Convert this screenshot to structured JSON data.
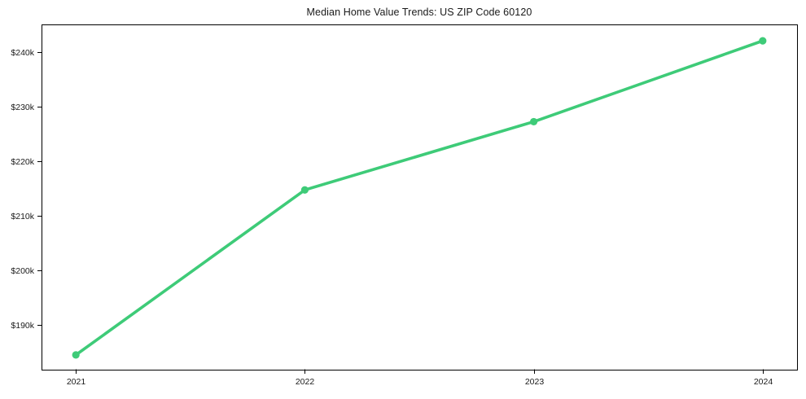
{
  "title": "Median Home Value Trends: US ZIP Code 60120",
  "colors": {
    "line": "#3ecb78",
    "axis": "#000000",
    "background": "#ffffff",
    "text": "#1a1a1a"
  },
  "chart_data": {
    "type": "line",
    "title": "Median Home Value Trends: US ZIP Code 60120",
    "xlabel": "",
    "ylabel": "",
    "grid": false,
    "legend_position": "none",
    "line_color": "#3ecb78",
    "marker": "circle",
    "x": [
      2021,
      2022,
      2023,
      2024
    ],
    "series": [
      {
        "name": "Median Home Value",
        "values": [
          184500,
          214700,
          227200,
          242000
        ]
      }
    ],
    "x_ticks": [
      {
        "value": 2021,
        "label": "2021"
      },
      {
        "value": 2022,
        "label": "2022"
      },
      {
        "value": 2023,
        "label": "2023"
      },
      {
        "value": 2024,
        "label": "2024"
      }
    ],
    "y_ticks": [
      {
        "value": 190000,
        "label": "$190k"
      },
      {
        "value": 200000,
        "label": "$200k"
      },
      {
        "value": 210000,
        "label": "$210k"
      },
      {
        "value": 220000,
        "label": "$220k"
      },
      {
        "value": 230000,
        "label": "$230k"
      },
      {
        "value": 240000,
        "label": "$240k"
      }
    ],
    "xlim": [
      2020.85,
      2024.15
    ],
    "ylim": [
      181800,
      245000
    ]
  }
}
